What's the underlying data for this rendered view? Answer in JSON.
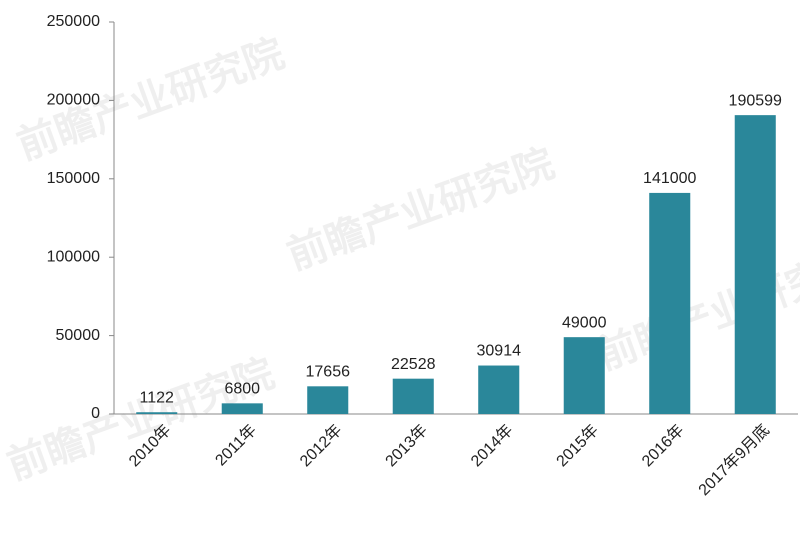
{
  "chart_data": {
    "type": "bar",
    "categories": [
      "2010年",
      "2011年",
      "2012年",
      "2013年",
      "2014年",
      "2015年",
      "2016年",
      "2017年9月底"
    ],
    "values": [
      1122,
      6800,
      17656,
      22528,
      30914,
      49000,
      141000,
      190599
    ],
    "color": "#2a879a",
    "ylim": [
      0,
      250000
    ],
    "yticks": [
      0,
      50000,
      100000,
      150000,
      200000,
      250000
    ],
    "grid": false,
    "watermark": "前瞻产业研究院"
  }
}
